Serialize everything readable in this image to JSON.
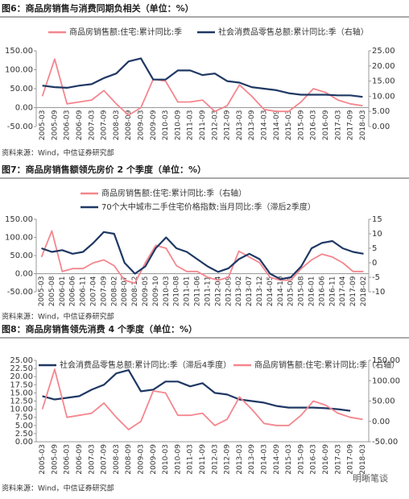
{
  "chart_data": [
    {
      "type": "line",
      "title": "图6：商品房销售与消费同期负相关（单位：%）",
      "source": "资料来源：Wind，中信证券研究部",
      "categories": [
        "2005-03",
        "2005-09",
        "2006-03",
        "2006-09",
        "2007-03",
        "2007-09",
        "2008-03",
        "2008-09",
        "2009-03",
        "2009-09",
        "2010-03",
        "2010-09",
        "2011-03",
        "2011-09",
        "2012-03",
        "2012-09",
        "2013-03",
        "2013-09",
        "2014-03",
        "2014-09",
        "2015-03",
        "2015-09",
        "2016-03",
        "2016-09",
        "2017-03",
        "2017-09",
        "2018-03"
      ],
      "series": [
        {
          "name": "商品房销售额:住宅:累计同比:季",
          "color": "#f4868e",
          "values": [
            30,
            128,
            10,
            15,
            20,
            45,
            10,
            -20,
            0,
            75,
            70,
            15,
            15,
            20,
            -10,
            5,
            60,
            30,
            -5,
            -10,
            -10,
            15,
            50,
            40,
            20,
            10,
            5
          ]
        },
        {
          "name": "社会消费品零售总额:累计同比:季（右轴）",
          "color": "#1f3864",
          "axis": "y2",
          "values": [
            13.5,
            13,
            12.8,
            13.5,
            14,
            16,
            17.5,
            21.5,
            22.5,
            15.5,
            15.5,
            18.5,
            18.5,
            17,
            17.5,
            15,
            14.5,
            13,
            12.5,
            12,
            11,
            10.5,
            10.5,
            10.5,
            10.3,
            10.3,
            9.8
          ]
        }
      ],
      "ylim": [
        -50,
        150
      ],
      "yticks": [
        {
          "value": -50,
          "label": "-50.00"
        },
        {
          "value": 0,
          "label": "0.00"
        },
        {
          "value": 50,
          "label": "50.00"
        },
        {
          "value": 100,
          "label": "100.00"
        },
        {
          "value": 150,
          "label": "150.00"
        }
      ],
      "y2lim": [
        0,
        25
      ],
      "y2ticks": [
        {
          "value": 0,
          "label": "0.00"
        },
        {
          "value": 5,
          "label": "5.00"
        },
        {
          "value": 10,
          "label": "10.00"
        },
        {
          "value": 15,
          "label": "15.00"
        },
        {
          "value": 20,
          "label": "20.00"
        },
        {
          "value": 25,
          "label": "25.00"
        }
      ]
    },
    {
      "type": "line",
      "title": "图7：商品房销售额领先房价 2 个季度（单位：%）",
      "source": "资料来源：Wind，中信证券研究部",
      "categories": [
        "2005-03",
        "2005-08",
        "2006-01",
        "2006-06",
        "2006-11",
        "2007-04",
        "2007-09",
        "2008-02",
        "2008-07",
        "2008-12",
        "2009-05",
        "2009-10",
        "2010-03",
        "2010-08",
        "2011-01",
        "2011-06",
        "2011-11",
        "2012-04",
        "2012-09",
        "2013-02",
        "2013-07",
        "2013-12",
        "2014-05",
        "2014-10",
        "2015-03",
        "2015-08",
        "2016-01",
        "2016-06",
        "2016-11",
        "2017-04",
        "2017-09",
        "2018-02"
      ],
      "series": [
        {
          "name": "商品房销售额:住宅:累计同比:季（右轴）",
          "color": "#f4868e",
          "axis": "y2",
          "values": [
            2,
            11,
            -3,
            -2,
            -2,
            0,
            1,
            -1,
            -6,
            -7,
            0,
            6,
            5,
            -1,
            -3,
            -3,
            -5,
            -6,
            -5,
            4,
            2,
            0,
            -5,
            -6,
            -6,
            -2,
            1,
            3,
            2,
            0,
            -3,
            -3
          ]
        },
        {
          "name": "70个大中城市二手住宅价格指数:当月同比:季（滞后2季度）",
          "color": "#1f3864",
          "values": [
            70,
            60,
            65,
            55,
            60,
            85,
            115,
            110,
            30,
            0,
            20,
            70,
            100,
            70,
            60,
            40,
            20,
            5,
            15,
            40,
            55,
            40,
            0,
            -15,
            -10,
            20,
            70,
            85,
            90,
            70,
            60,
            55
          ]
        }
      ],
      "ylim": [
        -50,
        150
      ],
      "yticks": [
        {
          "value": -50,
          "label": "-50.00"
        },
        {
          "value": 0,
          "label": "0.00"
        },
        {
          "value": 50,
          "label": "50.00"
        },
        {
          "value": 100,
          "label": "100.00"
        },
        {
          "value": 150,
          "label": "150.00"
        }
      ],
      "y2lim": [
        -10,
        15
      ],
      "y2ticks": [
        -10,
        -5,
        0,
        5,
        10,
        15
      ]
    },
    {
      "type": "line",
      "title": "图8：商品房销售领先消费 4 个季度（单位：%）",
      "source": "资料来源：Wind，中信证券研究部",
      "categories": [
        "2005-03",
        "2005-09",
        "2006-03",
        "2006-09",
        "2007-03",
        "2007-09",
        "2008-03",
        "2008-09",
        "2009-03",
        "2009-09",
        "2010-03",
        "2010-09",
        "2011-03",
        "2011-09",
        "2012-03",
        "2012-09",
        "2013-03",
        "2013-09",
        "2014-03",
        "2014-09",
        "2015-03",
        "2015-09",
        "2016-03",
        "2016-09",
        "2017-03",
        "2017-09",
        "2018-03"
      ],
      "series": [
        {
          "name": "社会消费品零售总额:累计同比:季（滞后4季度）",
          "color": "#1f3864",
          "values": [
            14,
            13,
            13.5,
            14,
            16,
            17.5,
            21,
            22,
            15.5,
            16,
            18.5,
            18.5,
            17,
            18,
            15,
            14.5,
            13,
            12.5,
            12,
            11,
            10.5,
            10.5,
            10.5,
            10.3,
            10,
            9.5,
            null
          ]
        },
        {
          "name": "商品房销售额:住宅:累计同比:季（右轴）",
          "color": "#f4868e",
          "axis": "y2",
          "values": [
            30,
            128,
            10,
            15,
            20,
            45,
            10,
            -20,
            0,
            75,
            70,
            15,
            15,
            20,
            -10,
            5,
            60,
            30,
            -5,
            -10,
            -10,
            15,
            50,
            40,
            20,
            10,
            5
          ]
        }
      ],
      "ylim": [
        0,
        25
      ],
      "yticks": [
        {
          "value": 0,
          "label": "0.00"
        },
        {
          "value": 2.5,
          "label": "2.50"
        },
        {
          "value": 5,
          "label": "5.00"
        },
        {
          "value": 7.5,
          "label": "7.50"
        },
        {
          "value": 10,
          "label": "10.00"
        },
        {
          "value": 12.5,
          "label": "12.50"
        },
        {
          "value": 15,
          "label": "15.00"
        },
        {
          "value": 17.5,
          "label": "17.50"
        },
        {
          "value": 20,
          "label": "20.00"
        },
        {
          "value": 22.5,
          "label": "22.50"
        },
        {
          "value": 25,
          "label": "25.00"
        }
      ],
      "y2lim": [
        -50,
        150
      ],
      "y2ticks": [
        {
          "value": -50,
          "label": "-50.00"
        },
        {
          "value": 0,
          "label": "0.00"
        },
        {
          "value": 50,
          "label": "50.00"
        },
        {
          "value": 100,
          "label": "100.00"
        },
        {
          "value": 150,
          "label": "150.00"
        }
      ]
    }
  ],
  "watermark": "明晰笔谈"
}
